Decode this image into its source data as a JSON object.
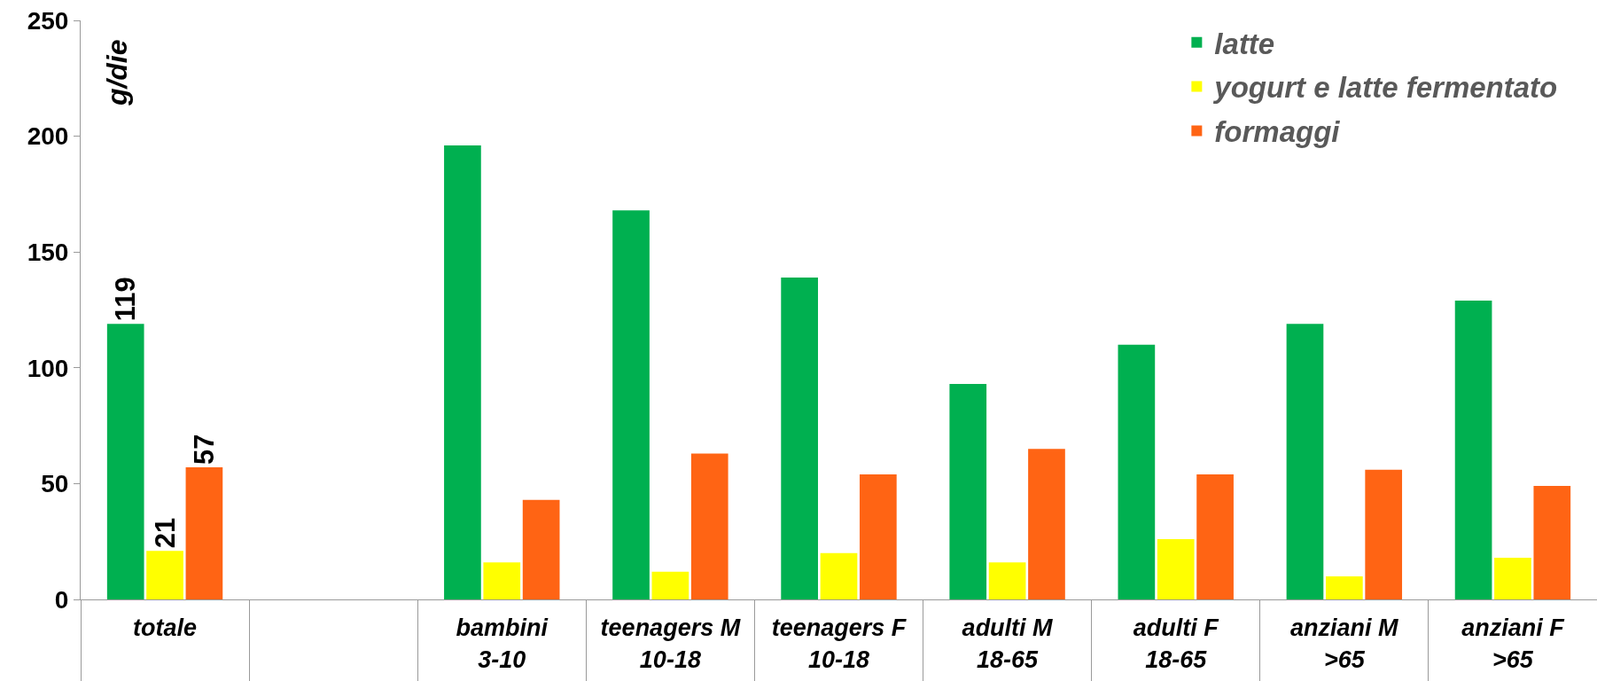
{
  "chart_data": {
    "type": "bar",
    "ylabel": "g/die",
    "categories": [
      "totale",
      null,
      "bambini\n3-10",
      "teenagers M\n10-18",
      "teenagers F\n10-18",
      "adulti M\n18-65",
      "adulti F\n18-65",
      "anziani M\n>65",
      "anziani F\n>65"
    ],
    "ylim": [
      0,
      250
    ],
    "yticks": [
      0,
      50,
      100,
      150,
      200,
      250
    ],
    "legend": "top right",
    "series": [
      {
        "name": "latte",
        "color": "#00b050",
        "values": [
          119,
          null,
          196,
          168,
          139,
          93,
          110,
          119,
          129
        ],
        "value_labels": [
          "119",
          null,
          null,
          null,
          null,
          null,
          null,
          null,
          null
        ]
      },
      {
        "name": "yogurt e latte fermentato",
        "color": "#ffff00",
        "values": [
          21,
          null,
          16,
          12,
          20,
          16,
          26,
          10,
          18
        ],
        "value_labels": [
          "21",
          null,
          null,
          null,
          null,
          null,
          null,
          null,
          null
        ]
      },
      {
        "name": "formaggi",
        "color": "#ff6414",
        "values": [
          57,
          null,
          43,
          63,
          54,
          65,
          54,
          56,
          49
        ],
        "value_labels": [
          "57",
          null,
          null,
          null,
          null,
          null,
          null,
          null,
          null
        ]
      }
    ]
  }
}
